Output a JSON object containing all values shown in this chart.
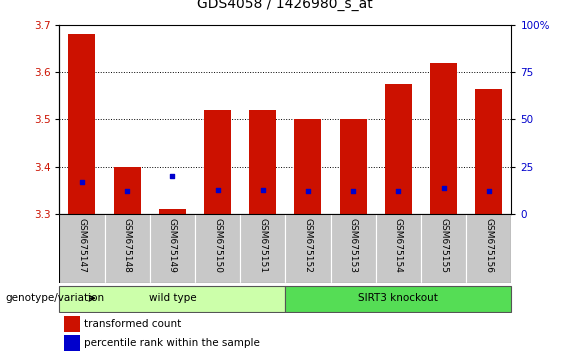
{
  "title": "GDS4058 / 1426980_s_at",
  "samples": [
    "GSM675147",
    "GSM675148",
    "GSM675149",
    "GSM675150",
    "GSM675151",
    "GSM675152",
    "GSM675153",
    "GSM675154",
    "GSM675155",
    "GSM675156"
  ],
  "transformed_count": [
    3.68,
    3.4,
    3.31,
    3.52,
    3.52,
    3.5,
    3.5,
    3.575,
    3.62,
    3.565
  ],
  "percentile_rank": [
    17,
    12,
    20,
    13,
    13,
    12,
    12,
    12,
    14,
    12
  ],
  "ylim_left": [
    3.3,
    3.7
  ],
  "ylim_right": [
    0,
    100
  ],
  "yticks_left": [
    3.3,
    3.4,
    3.5,
    3.6,
    3.7
  ],
  "yticks_right": [
    0,
    25,
    50,
    75,
    100
  ],
  "ytick_right_labels": [
    "0",
    "25",
    "50",
    "75",
    "100%"
  ],
  "bar_color": "#cc1100",
  "dot_color": "#0000cc",
  "bar_bottom": 3.3,
  "wild_type_label": "wild type",
  "knockout_label": "SIRT3 knockout",
  "wild_type_color": "#ccffaa",
  "knockout_color": "#55dd55",
  "group_label": "genotype/variation",
  "legend_red_label": "transformed count",
  "legend_blue_label": "percentile rank within the sample",
  "axis_tick_color_left": "#cc1100",
  "axis_tick_color_right": "#0000cc",
  "bar_width": 0.6,
  "title_fontsize": 10,
  "xlabel_gray_color": "#c8c8c8",
  "xlabel_sep_color": "#ffffff"
}
